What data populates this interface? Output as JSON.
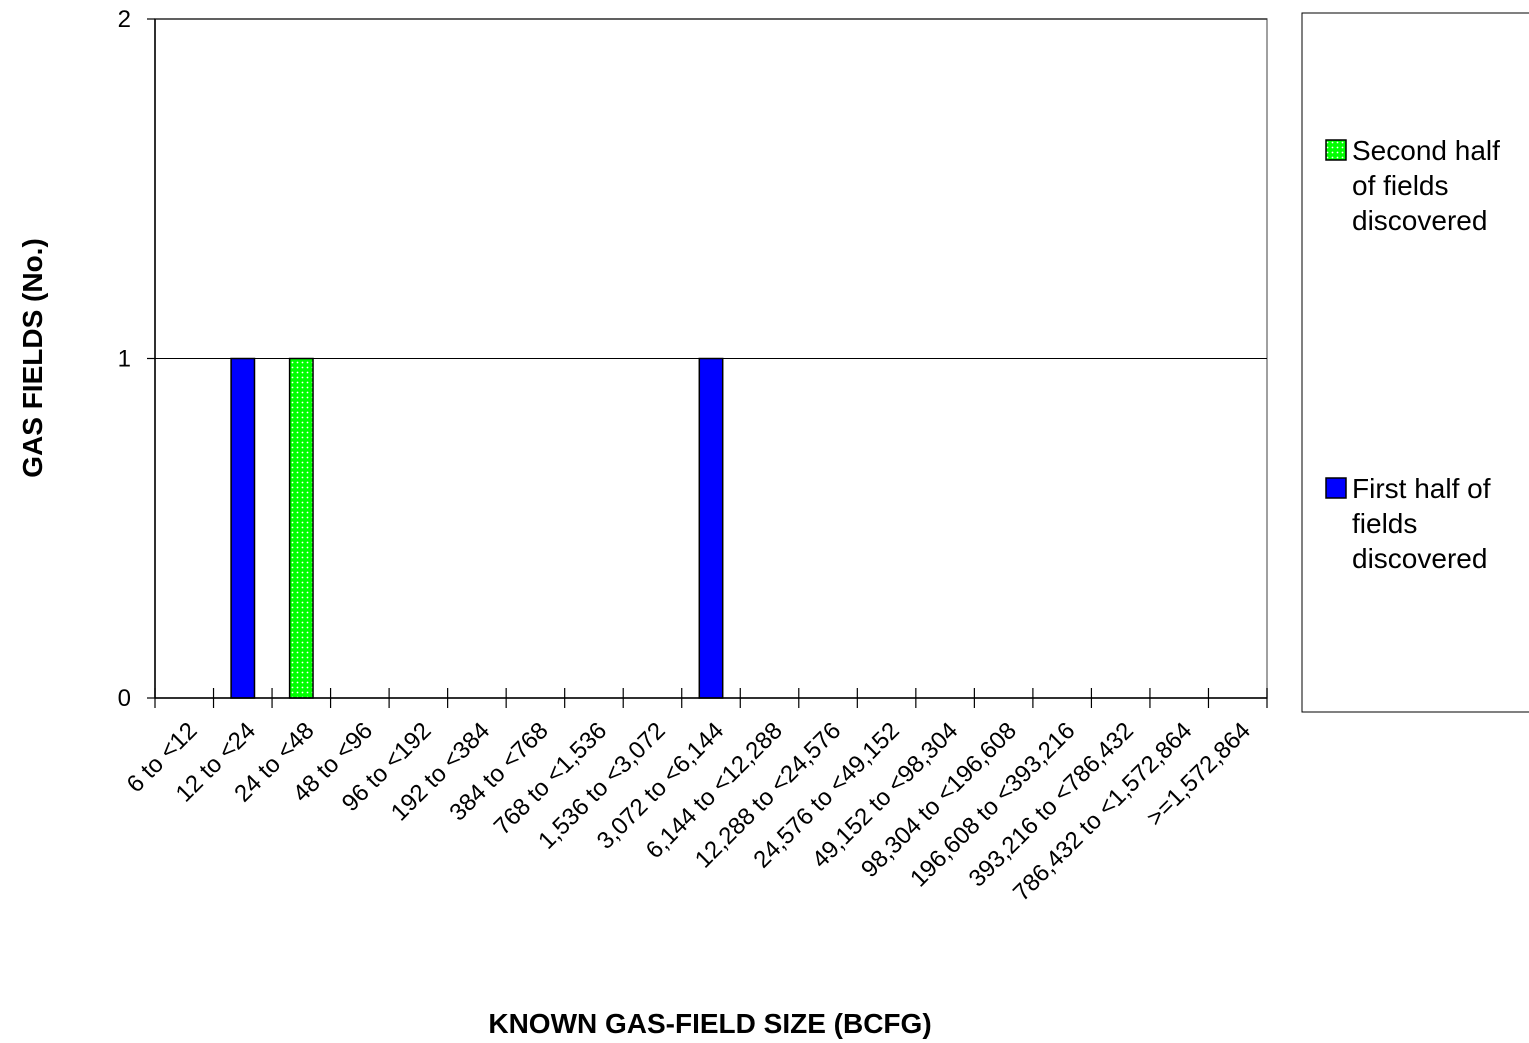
{
  "chart_data": {
    "type": "bar",
    "title": "",
    "xlabel": "KNOWN GAS-FIELD SIZE (BCFG)",
    "ylabel": "GAS FIELDS (No.)",
    "ylim": [
      0,
      2
    ],
    "yticks": [
      "0",
      "1",
      "2"
    ],
    "grid": true,
    "legend_position": "right",
    "categories": [
      "6 to <12",
      "12 to <24",
      "24 to <48",
      "48 to <96",
      "96 to <192",
      "192 to <384",
      "384 to <768",
      "768 to <1,536",
      "1,536 to <3,072",
      "3,072 to <6,144",
      "6,144 to <12,288",
      "12,288 to <24,576",
      "24,576 to <49,152",
      "49,152 to <98,304",
      "98,304 to <196,608",
      "196,608 to <393,216",
      "393,216 to <786,432",
      "786,432 to <1,572,864",
      ">=1,572,864"
    ],
    "series": [
      {
        "name": "First half of fields discovered",
        "color": "#0000ff",
        "values": [
          0,
          1,
          0,
          0,
          0,
          0,
          0,
          0,
          0,
          1,
          0,
          0,
          0,
          0,
          0,
          0,
          0,
          0,
          0
        ]
      },
      {
        "name": "Second half of fields discovered",
        "color": "#00ff00",
        "pattern": "dotted",
        "values": [
          0,
          0,
          1,
          0,
          0,
          0,
          0,
          0,
          0,
          0,
          0,
          0,
          0,
          0,
          0,
          0,
          0,
          0,
          0
        ]
      }
    ],
    "legend": {
      "entries": [
        {
          "series": 1,
          "lines": [
            "Second half",
            "of fields",
            "discovered"
          ]
        },
        {
          "series": 0,
          "lines": [
            "First half of",
            "fields",
            "discovered"
          ]
        }
      ]
    }
  }
}
